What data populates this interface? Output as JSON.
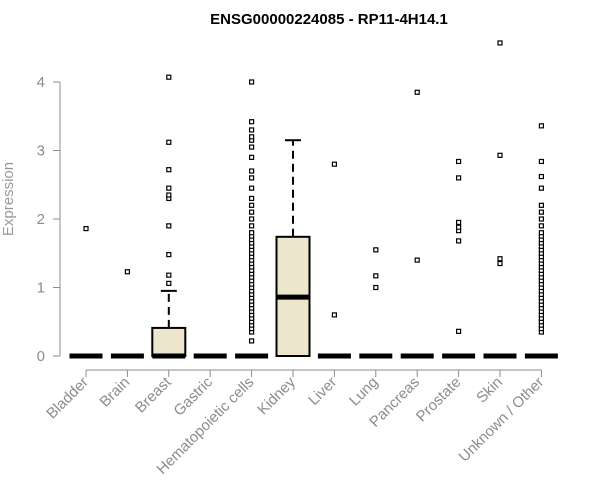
{
  "chart_data": {
    "type": "boxplot",
    "title": "ENSG00000224085 - RP11-4H14.1",
    "xlabel": "",
    "ylabel": "Expression",
    "ylim": [
      0,
      4.6
    ],
    "yticks": [
      0,
      1,
      2,
      3,
      4
    ],
    "grid": false,
    "box_fill": "#ede6cc",
    "box_stroke": "#000000",
    "axis_color": "#8c8c8c",
    "categories": [
      "Bladder",
      "Brain",
      "Breast",
      "Gastric",
      "Hematopoietic cells",
      "Kidney",
      "Liver",
      "Lung",
      "Pancreas",
      "Prostate",
      "Skin",
      "Unknown / Other"
    ],
    "series": [
      {
        "category": "Bladder",
        "q1": 0,
        "median": 0,
        "q3": 0,
        "whisker_low": 0,
        "whisker_high": 0,
        "outliers": [
          1.86
        ]
      },
      {
        "category": "Brain",
        "q1": 0,
        "median": 0,
        "q3": 0,
        "whisker_low": 0,
        "whisker_high": 0,
        "outliers": [
          1.23
        ]
      },
      {
        "category": "Breast",
        "q1": 0,
        "median": 0,
        "q3": 0.41,
        "whisker_low": 0,
        "whisker_high": 0.95,
        "outliers": [
          1.06,
          1.18,
          1.48,
          1.9,
          2.3,
          2.35,
          2.45,
          2.72,
          3.12,
          4.07
        ]
      },
      {
        "category": "Gastric",
        "q1": 0,
        "median": 0,
        "q3": 0,
        "whisker_low": 0,
        "whisker_high": 0,
        "outliers": []
      },
      {
        "category": "Hematopoietic cells",
        "q1": 0,
        "median": 0,
        "q3": 0,
        "whisker_low": 0,
        "whisker_high": 0,
        "outliers": [
          0.22,
          0.35,
          0.4,
          0.45,
          0.5,
          0.55,
          0.6,
          0.65,
          0.7,
          0.75,
          0.8,
          0.85,
          0.9,
          0.95,
          1.0,
          1.05,
          1.1,
          1.15,
          1.2,
          1.25,
          1.3,
          1.35,
          1.4,
          1.45,
          1.5,
          1.55,
          1.6,
          1.65,
          1.7,
          1.75,
          1.8,
          1.9,
          2.0,
          2.1,
          2.2,
          2.3,
          2.45,
          2.6,
          2.7,
          2.9,
          3.05,
          3.15,
          3.2,
          3.3,
          3.42,
          4.0
        ]
      },
      {
        "category": "Kidney",
        "q1": 0,
        "median": 0.86,
        "q3": 1.74,
        "whisker_low": 0,
        "whisker_high": 3.15,
        "outliers": []
      },
      {
        "category": "Liver",
        "q1": 0,
        "median": 0,
        "q3": 0,
        "whisker_low": 0,
        "whisker_high": 0,
        "outliers": [
          0.6,
          2.8
        ]
      },
      {
        "category": "Lung",
        "q1": 0,
        "median": 0,
        "q3": 0,
        "whisker_low": 0,
        "whisker_high": 0,
        "outliers": [
          1.0,
          1.17,
          1.55
        ]
      },
      {
        "category": "Pancreas",
        "q1": 0,
        "median": 0,
        "q3": 0,
        "whisker_low": 0,
        "whisker_high": 0,
        "outliers": [
          1.4,
          3.85
        ]
      },
      {
        "category": "Prostate",
        "q1": 0,
        "median": 0,
        "q3": 0,
        "whisker_low": 0,
        "whisker_high": 0,
        "outliers": [
          0.36,
          1.68,
          1.83,
          1.88,
          1.95,
          2.6,
          2.84
        ]
      },
      {
        "category": "Skin",
        "q1": 0,
        "median": 0,
        "q3": 0,
        "whisker_low": 0,
        "whisker_high": 0,
        "outliers": [
          1.35,
          1.42,
          2.93,
          4.57
        ]
      },
      {
        "category": "Unknown / Other",
        "q1": 0,
        "median": 0,
        "q3": 0,
        "whisker_low": 0,
        "whisker_high": 0,
        "outliers": [
          0.35,
          0.4,
          0.45,
          0.5,
          0.55,
          0.6,
          0.65,
          0.7,
          0.75,
          0.8,
          0.85,
          0.9,
          0.95,
          1.0,
          1.05,
          1.1,
          1.15,
          1.2,
          1.25,
          1.3,
          1.35,
          1.4,
          1.45,
          1.5,
          1.55,
          1.6,
          1.65,
          1.7,
          1.75,
          1.8,
          1.9,
          2.0,
          2.1,
          2.2,
          2.45,
          2.62,
          2.84,
          3.36
        ]
      }
    ]
  }
}
